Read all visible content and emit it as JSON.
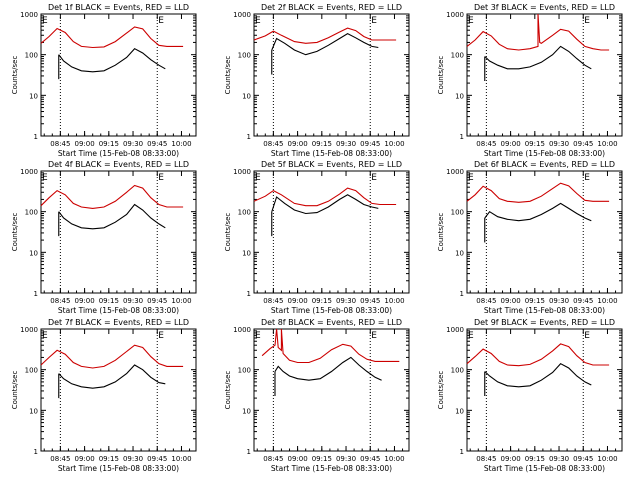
{
  "page": {
    "colors": {
      "events": "#000000",
      "lld": "#cc0000",
      "background": "#ffffff"
    }
  },
  "chart_data": [
    {
      "type": "line",
      "title": "Det 1f BLACK = Events, RED = LLD",
      "ylabel": "Counts/sec",
      "xlabel": "Start Time (15-Feb-08 08:33:00)",
      "yscale": "log",
      "ylim": [
        1,
        1000
      ],
      "y_ticks": [
        "1",
        "10",
        "100",
        "1000"
      ],
      "x_ticks": [
        "08:45",
        "09:00",
        "09:15",
        "09:30",
        "09:45",
        "10:00"
      ],
      "markers": [
        "08:45",
        "09:45"
      ],
      "corner_labels": [
        "E",
        "E"
      ],
      "grid": false,
      "series": [
        {
          "name": "LLD",
          "color": "red",
          "x": [
            "08:33",
            "08:38",
            "08:43",
            "08:48",
            "08:53",
            "08:58",
            "09:05",
            "09:12",
            "09:19",
            "09:26",
            "09:31",
            "09:36",
            "09:41",
            "09:46",
            "09:51",
            "09:56",
            "10:01"
          ],
          "values": [
            190,
            280,
            440,
            350,
            210,
            160,
            150,
            155,
            210,
            340,
            480,
            430,
            250,
            170,
            160,
            160,
            160
          ]
        },
        {
          "name": "Events",
          "color": "black",
          "x": [
            "08:44",
            "08:47",
            "08:52",
            "08:58",
            "09:05",
            "09:12",
            "09:19",
            "09:26",
            "09:31",
            "09:36",
            "09:41",
            "09:46",
            "09:50"
          ],
          "values": [
            100,
            70,
            50,
            40,
            38,
            40,
            55,
            85,
            140,
            110,
            75,
            55,
            45
          ]
        }
      ]
    },
    {
      "type": "line",
      "title": "Det 2f BLACK = Events, RED = LLD",
      "ylabel": "Counts/sec",
      "xlabel": "Start Time (15-Feb-08 08:33:00)",
      "yscale": "log",
      "ylim": [
        1,
        1000
      ],
      "y_ticks": [
        "1",
        "10",
        "100",
        "1000"
      ],
      "x_ticks": [
        "08:45",
        "09:00",
        "09:15",
        "09:30",
        "09:45",
        "10:00"
      ],
      "markers": [
        "08:45",
        "09:45"
      ],
      "corner_labels": [
        "E",
        "E"
      ],
      "grid": false,
      "series": [
        {
          "name": "LLD",
          "color": "red",
          "x": [
            "08:33",
            "08:40",
            "08:45",
            "08:50",
            "08:58",
            "09:05",
            "09:12",
            "09:19",
            "09:26",
            "09:31",
            "09:36",
            "09:41",
            "09:46",
            "09:51",
            "09:56",
            "10:01"
          ],
          "values": [
            230,
            290,
            380,
            300,
            210,
            190,
            200,
            260,
            360,
            450,
            390,
            280,
            230,
            230,
            230,
            230
          ]
        },
        {
          "name": "Events",
          "color": "black",
          "x": [
            "08:44",
            "08:47",
            "08:52",
            "08:58",
            "09:05",
            "09:12",
            "09:19",
            "09:26",
            "09:31",
            "09:36",
            "09:41",
            "09:46",
            "09:50"
          ],
          "values": [
            130,
            250,
            190,
            130,
            100,
            120,
            170,
            250,
            330,
            260,
            200,
            160,
            150
          ]
        }
      ]
    },
    {
      "type": "line",
      "title": "Det 3f BLACK = Events, RED = LLD",
      "ylabel": "Counts/sec",
      "xlabel": "Start Time (15-Feb-08 08:33:00)",
      "yscale": "log",
      "ylim": [
        1,
        1000
      ],
      "y_ticks": [
        "1",
        "10",
        "100",
        "1000"
      ],
      "x_ticks": [
        "08:45",
        "09:00",
        "09:15",
        "09:30",
        "09:45",
        "10:00"
      ],
      "markers": [
        "08:45",
        "09:45"
      ],
      "corner_labels": [
        "E",
        "E"
      ],
      "grid": false,
      "series": [
        {
          "name": "LLD",
          "color": "red",
          "x": [
            "08:33",
            "08:38",
            "08:43",
            "08:48",
            "08:53",
            "08:58",
            "09:05",
            "09:12",
            "09:17",
            "09:17",
            "09:18",
            "09:19",
            "09:26",
            "09:31",
            "09:36",
            "09:41",
            "09:46",
            "09:51",
            "09:56",
            "10:01"
          ],
          "values": [
            160,
            230,
            370,
            290,
            180,
            140,
            130,
            140,
            160,
            1000,
            200,
            190,
            300,
            420,
            380,
            240,
            160,
            140,
            130,
            130
          ]
        },
        {
          "name": "Events",
          "color": "black",
          "x": [
            "08:44",
            "08:47",
            "08:52",
            "08:58",
            "09:05",
            "09:12",
            "09:19",
            "09:26",
            "09:31",
            "09:36",
            "09:41",
            "09:46",
            "09:50"
          ],
          "values": [
            90,
            70,
            55,
            45,
            45,
            50,
            65,
            100,
            160,
            120,
            80,
            55,
            45
          ]
        }
      ]
    },
    {
      "type": "line",
      "title": "Det 4f BLACK = Events, RED = LLD",
      "ylabel": "Counts/sec",
      "xlabel": "Start Time (15-Feb-08 08:33:00)",
      "yscale": "log",
      "ylim": [
        1,
        1000
      ],
      "y_ticks": [
        "1",
        "10",
        "100",
        "1000"
      ],
      "x_ticks": [
        "08:45",
        "09:00",
        "09:15",
        "09:30",
        "09:45",
        "10:00"
      ],
      "markers": [
        "08:45",
        "09:45"
      ],
      "corner_labels": [
        "E",
        "E"
      ],
      "grid": false,
      "series": [
        {
          "name": "LLD",
          "color": "red",
          "x": [
            "08:33",
            "08:38",
            "08:43",
            "08:48",
            "08:53",
            "08:58",
            "09:05",
            "09:12",
            "09:19",
            "09:26",
            "09:31",
            "09:36",
            "09:41",
            "09:46",
            "09:51",
            "09:56",
            "10:01"
          ],
          "values": [
            140,
            220,
            330,
            260,
            160,
            130,
            120,
            130,
            180,
            300,
            440,
            380,
            220,
            150,
            130,
            130,
            130
          ]
        },
        {
          "name": "Events",
          "color": "black",
          "x": [
            "08:44",
            "08:47",
            "08:52",
            "08:58",
            "09:05",
            "09:12",
            "09:19",
            "09:26",
            "09:31",
            "09:36",
            "09:41",
            "09:46",
            "09:50"
          ],
          "values": [
            100,
            70,
            50,
            40,
            38,
            40,
            55,
            85,
            150,
            110,
            70,
            50,
            40
          ]
        }
      ]
    },
    {
      "type": "line",
      "title": "Det 5f BLACK = Events, RED = LLD",
      "ylabel": "Counts/sec",
      "xlabel": "Start Time (15-Feb-08 08:33:00)",
      "yscale": "log",
      "ylim": [
        1,
        1000
      ],
      "y_ticks": [
        "1",
        "10",
        "100",
        "1000"
      ],
      "x_ticks": [
        "08:45",
        "09:00",
        "09:15",
        "09:30",
        "09:45",
        "10:00"
      ],
      "markers": [
        "08:45",
        "09:45"
      ],
      "corner_labels": [
        "E",
        "E"
      ],
      "grid": false,
      "series": [
        {
          "name": "LLD",
          "color": "red",
          "x": [
            "08:33",
            "08:40",
            "08:45",
            "08:50",
            "08:58",
            "09:05",
            "09:12",
            "09:19",
            "09:26",
            "09:31",
            "09:36",
            "09:41",
            "09:46",
            "09:51",
            "09:56",
            "10:01"
          ],
          "values": [
            180,
            240,
            330,
            260,
            160,
            140,
            140,
            180,
            270,
            380,
            330,
            220,
            160,
            150,
            150,
            150
          ]
        },
        {
          "name": "Events",
          "color": "black",
          "x": [
            "08:44",
            "08:47",
            "08:52",
            "08:58",
            "09:05",
            "09:12",
            "09:19",
            "09:26",
            "09:31",
            "09:36",
            "09:41",
            "09:46",
            "09:50"
          ],
          "values": [
            100,
            230,
            160,
            110,
            90,
            95,
            130,
            200,
            260,
            200,
            150,
            130,
            120
          ]
        }
      ]
    },
    {
      "type": "line",
      "title": "Det 6f BLACK = Events, RED = LLD",
      "ylabel": "Counts/sec",
      "xlabel": "Start Time (15-Feb-08 08:33:00)",
      "yscale": "log",
      "ylim": [
        1,
        1000
      ],
      "y_ticks": [
        "1",
        "10",
        "100",
        "1000"
      ],
      "x_ticks": [
        "08:45",
        "09:00",
        "09:15",
        "09:30",
        "09:45",
        "10:00"
      ],
      "markers": [
        "08:45",
        "09:45"
      ],
      "corner_labels": [
        "E",
        "E"
      ],
      "grid": false,
      "series": [
        {
          "name": "LLD",
          "color": "red",
          "x": [
            "08:33",
            "08:38",
            "08:43",
            "08:48",
            "08:53",
            "08:58",
            "09:05",
            "09:12",
            "09:19",
            "09:26",
            "09:31",
            "09:36",
            "09:41",
            "09:46",
            "09:51",
            "09:56",
            "10:01"
          ],
          "values": [
            180,
            260,
            420,
            330,
            210,
            180,
            170,
            180,
            240,
            370,
            500,
            430,
            280,
            190,
            180,
            180,
            180
          ]
        },
        {
          "name": "Events",
          "color": "black",
          "x": [
            "08:44",
            "08:47",
            "08:52",
            "08:58",
            "09:05",
            "09:12",
            "09:19",
            "09:26",
            "09:31",
            "09:36",
            "09:41",
            "09:46",
            "09:50"
          ],
          "values": [
            70,
            100,
            75,
            65,
            60,
            65,
            85,
            120,
            160,
            120,
            90,
            70,
            60
          ]
        }
      ]
    },
    {
      "type": "line",
      "title": "Det 7f BLACK = Events, RED = LLD",
      "ylabel": "Counts/sec",
      "xlabel": "Start Time (15-Feb-08 08:33:00)",
      "yscale": "log",
      "ylim": [
        1,
        1000
      ],
      "y_ticks": [
        "1",
        "10",
        "100",
        "1000"
      ],
      "x_ticks": [
        "08:45",
        "09:00",
        "09:15",
        "09:30",
        "09:45",
        "10:00"
      ],
      "markers": [
        "08:45",
        "09:45"
      ],
      "corner_labels": [
        "E",
        "E"
      ],
      "grid": false,
      "series": [
        {
          "name": "LLD",
          "color": "red",
          "x": [
            "08:33",
            "08:38",
            "08:43",
            "08:48",
            "08:53",
            "08:58",
            "09:05",
            "09:12",
            "09:19",
            "09:26",
            "09:31",
            "09:36",
            "09:41",
            "09:46",
            "09:51",
            "09:56",
            "10:01"
          ],
          "values": [
            130,
            200,
            300,
            240,
            150,
            120,
            110,
            120,
            170,
            280,
            400,
            350,
            210,
            140,
            120,
            120,
            120
          ]
        },
        {
          "name": "Events",
          "color": "black",
          "x": [
            "08:44",
            "08:47",
            "08:52",
            "08:58",
            "09:05",
            "09:12",
            "09:19",
            "09:26",
            "09:31",
            "09:36",
            "09:41",
            "09:46",
            "09:50"
          ],
          "values": [
            80,
            60,
            45,
            38,
            35,
            38,
            50,
            80,
            130,
            100,
            65,
            48,
            45
          ]
        }
      ]
    },
    {
      "type": "line",
      "title": "Det 8f BLACK = Events, RED = LLD",
      "ylabel": "Counts/sec",
      "xlabel": "Start Time (15-Feb-08 08:33:00)",
      "yscale": "log",
      "ylim": [
        1,
        1000
      ],
      "y_ticks": [
        "1",
        "10",
        "100",
        "1000"
      ],
      "x_ticks": [
        "08:45",
        "09:00",
        "09:15",
        "09:30",
        "09:45",
        "10:00"
      ],
      "markers": [
        "08:45",
        "09:45"
      ],
      "corner_labels": [
        "E",
        "E"
      ],
      "grid": false,
      "series": [
        {
          "name": "LLD",
          "color": "red",
          "x": [
            "08:38",
            "08:43",
            "08:46",
            "08:47",
            "08:48",
            "08:50",
            "08:50",
            "08:51",
            "08:55",
            "09:00",
            "09:07",
            "09:14",
            "09:21",
            "09:28",
            "09:33",
            "09:38",
            "09:43",
            "09:48",
            "09:53",
            "09:58",
            "10:03"
          ],
          "values": [
            220,
            330,
            400,
            1000,
            350,
            300,
            1000,
            250,
            170,
            150,
            150,
            190,
            310,
            420,
            380,
            240,
            180,
            160,
            160,
            160,
            160
          ]
        },
        {
          "name": "Events",
          "color": "black",
          "x": [
            "08:46",
            "08:48",
            "08:51",
            "08:55",
            "09:00",
            "09:07",
            "09:14",
            "09:21",
            "09:28",
            "09:33",
            "09:38",
            "09:43",
            "09:48",
            "09:52"
          ],
          "values": [
            90,
            120,
            90,
            70,
            60,
            55,
            60,
            90,
            150,
            200,
            130,
            90,
            65,
            55
          ]
        }
      ]
    },
    {
      "type": "line",
      "title": "Det 9f BLACK = Events, RED = LLD",
      "ylabel": "Counts/sec",
      "xlabel": "Start Time (15-Feb-08 08:33:00)",
      "yscale": "log",
      "ylim": [
        1,
        1000
      ],
      "y_ticks": [
        "1",
        "10",
        "100",
        "1000"
      ],
      "x_ticks": [
        "08:45",
        "09:00",
        "09:15",
        "09:30",
        "09:45",
        "10:00"
      ],
      "markers": [
        "08:45",
        "09:45"
      ],
      "corner_labels": [
        "E",
        "E"
      ],
      "grid": false,
      "series": [
        {
          "name": "LLD",
          "color": "red",
          "x": [
            "08:33",
            "08:38",
            "08:43",
            "08:48",
            "08:53",
            "08:58",
            "09:05",
            "09:12",
            "09:19",
            "09:26",
            "09:31",
            "09:36",
            "09:41",
            "09:46",
            "09:51",
            "09:56",
            "10:01"
          ],
          "values": [
            140,
            210,
            320,
            250,
            160,
            130,
            125,
            135,
            180,
            290,
            430,
            370,
            220,
            150,
            130,
            130,
            130
          ]
        },
        {
          "name": "Events",
          "color": "black",
          "x": [
            "08:44",
            "08:47",
            "08:52",
            "08:58",
            "09:05",
            "09:12",
            "09:19",
            "09:26",
            "09:31",
            "09:36",
            "09:41",
            "09:46",
            "09:50"
          ],
          "values": [
            90,
            70,
            50,
            40,
            38,
            40,
            55,
            85,
            140,
            110,
            70,
            50,
            42
          ]
        }
      ]
    }
  ]
}
